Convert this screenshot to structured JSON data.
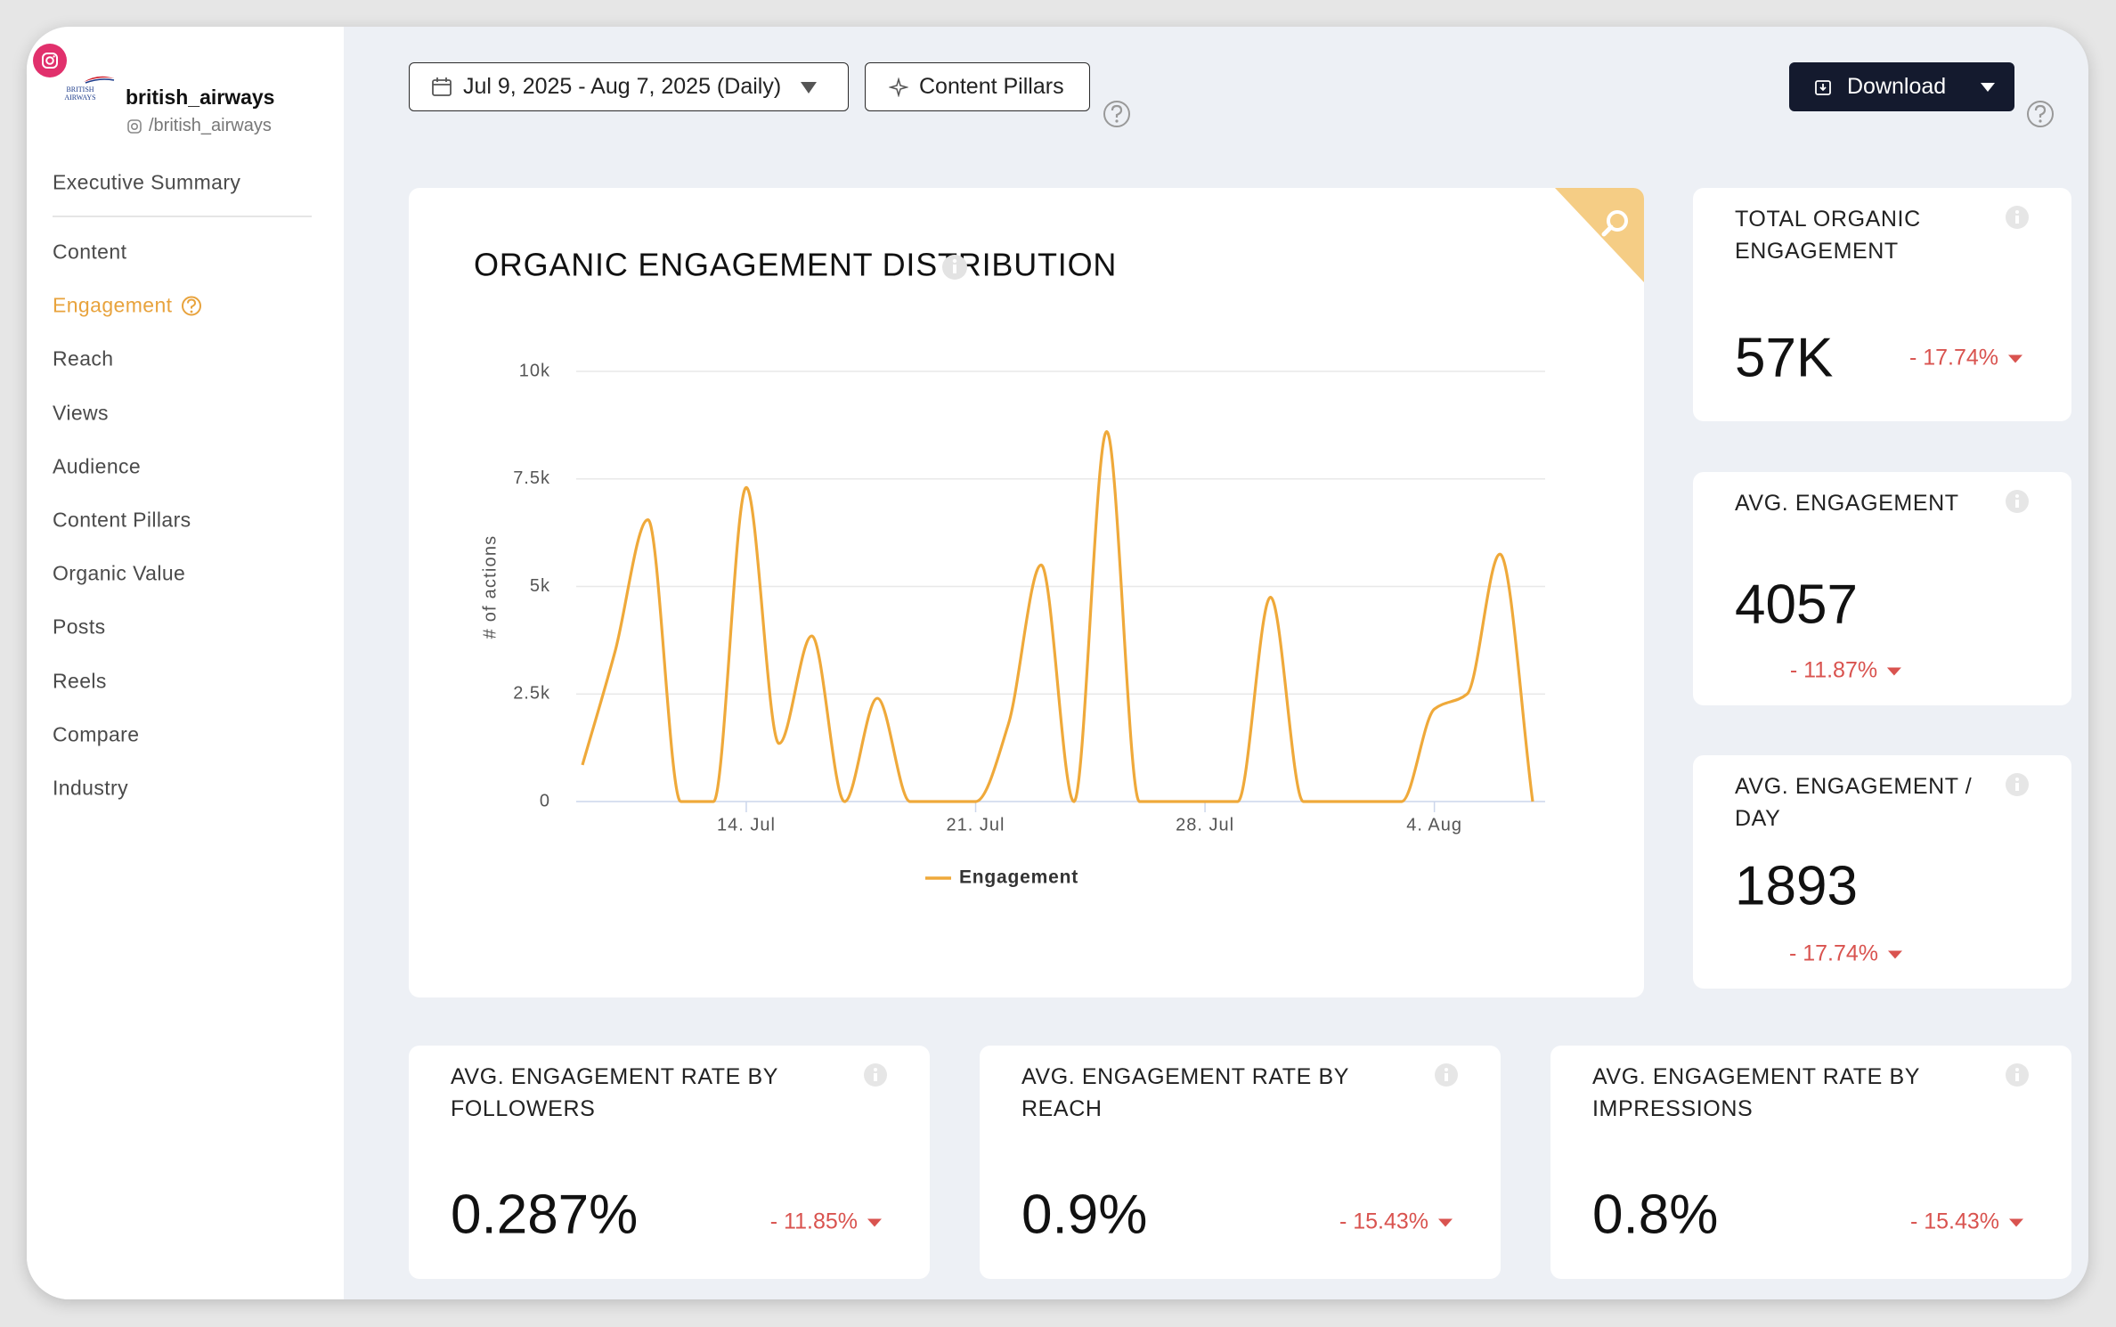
{
  "sidebar": {
    "profile": {
      "logo_text": "BRITISH AIRWAYS",
      "name": "british_airways",
      "handle": "/british_airways"
    },
    "nav": [
      {
        "label": "Executive Summary"
      },
      {
        "label": "Content"
      },
      {
        "label": "Engagement",
        "active": true
      },
      {
        "label": "Reach"
      },
      {
        "label": "Views"
      },
      {
        "label": "Audience"
      },
      {
        "label": "Content Pillars"
      },
      {
        "label": "Organic Value"
      },
      {
        "label": "Posts"
      },
      {
        "label": "Reels"
      },
      {
        "label": "Compare"
      },
      {
        "label": "Industry"
      }
    ]
  },
  "toolbar": {
    "date_range": "Jul 9, 2025 - Aug 7, 2025 (Daily)",
    "pillars_button": "Content Pillars",
    "download_button": "Download"
  },
  "chart_data": {
    "type": "line",
    "title": "ORGANIC ENGAGEMENT DISTRIBUTION",
    "y_axis_label": "# of actions",
    "categories": [
      null,
      null,
      null,
      null,
      null,
      "14. Jul",
      null,
      null,
      null,
      null,
      null,
      null,
      "21. Jul",
      null,
      null,
      null,
      null,
      null,
      null,
      "28. Jul",
      null,
      null,
      null,
      null,
      null,
      null,
      "4. Aug",
      null,
      null,
      null
    ],
    "series": [
      {
        "name": "Engagement",
        "color": "#efa93a",
        "values": [
          850,
          3500,
          6550,
          0,
          0,
          7300,
          1350,
          3850,
          0,
          2400,
          0,
          0,
          0,
          1800,
          5500,
          0,
          8600,
          0,
          0,
          0,
          0,
          4750,
          0,
          0,
          0,
          0,
          2150,
          2500,
          5750,
          0
        ]
      }
    ],
    "ylim": [
      0,
      10000
    ],
    "yticks": [
      0,
      {
        "value": 2500,
        "label": "2.5k"
      },
      {
        "value": 5000,
        "label": "5k"
      },
      {
        "value": 7500,
        "label": "7.5k"
      },
      {
        "value": 10000,
        "label": "10k"
      }
    ],
    "grid": true,
    "legend": "bottom"
  },
  "kpis": [
    {
      "title": "TOTAL ORGANIC ENGAGEMENT",
      "value": "57K",
      "change": "- 17.74%"
    },
    {
      "title": "AVG. ENGAGEMENT",
      "value": "4057",
      "change": "- 11.87%"
    },
    {
      "title": "AVG. ENGAGEMENT / DAY",
      "value": "1893",
      "change": "- 17.74%"
    },
    {
      "title": "AVG. ENGAGEMENT RATE BY FOLLOWERS",
      "value": "0.287%",
      "change": "- 11.85%"
    },
    {
      "title": "AVG. ENGAGEMENT RATE BY REACH",
      "value": "0.9%",
      "change": "- 15.43%"
    },
    {
      "title": "AVG. ENGAGEMENT RATE BY IMPRESSIONS",
      "value": "0.8%",
      "change": "- 15.43%"
    }
  ]
}
